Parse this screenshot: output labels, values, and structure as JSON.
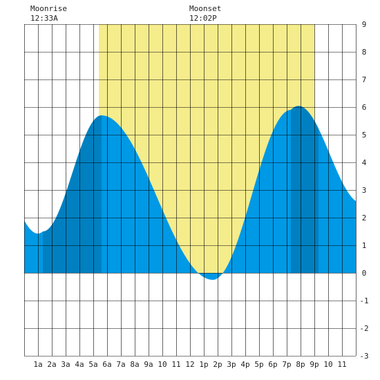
{
  "moon": {
    "moonrise_label": "Moonrise",
    "moonrise_time": "12:33A",
    "moonset_label": "Moonset",
    "moonset_time": "12:02P"
  },
  "colors": {
    "tide_light": "#0099e5",
    "tide_dark": "#0080c0",
    "daylight": "#f5ec8c",
    "grid": "#000000",
    "background": "#ffffff"
  },
  "chart_data": {
    "type": "area",
    "title": "",
    "xlabel": "",
    "ylabel": "",
    "xlim": [
      0,
      24
    ],
    "ylim": [
      -3,
      9
    ],
    "grid": true,
    "x_tick_labels": [
      "1a",
      "2a",
      "3a",
      "4a",
      "5a",
      "6a",
      "7a",
      "8a",
      "9a",
      "10",
      "11",
      "12",
      "1p",
      "2p",
      "3p",
      "4p",
      "5p",
      "6p",
      "7p",
      "8p",
      "9p",
      "10",
      "11"
    ],
    "y_tick_labels": [
      "9",
      "8",
      "7",
      "6",
      "5",
      "4",
      "3",
      "2",
      "1",
      "0",
      "-1",
      "-2",
      "-3"
    ],
    "daylight_hours": [
      5.4,
      21.0
    ],
    "dark_bands_hours": [
      [
        1.35,
        5.6
      ],
      [
        19.3,
        21.3
      ]
    ],
    "tide_extremes": [
      {
        "hour": 1.35,
        "height": 1.5,
        "kind": "low"
      },
      {
        "hour": 5.6,
        "height": 5.7,
        "kind": "high"
      },
      {
        "hour": 13.65,
        "height": -0.25,
        "kind": "low"
      },
      {
        "hour": 19.3,
        "height": 5.9,
        "kind": "high"
      }
    ],
    "series": [
      {
        "x": [
          0,
          1.35,
          5.6,
          13.65,
          19.3,
          24
        ],
        "values": [
          1.9,
          1.5,
          5.7,
          -0.25,
          5.9,
          2.6
        ]
      }
    ]
  }
}
